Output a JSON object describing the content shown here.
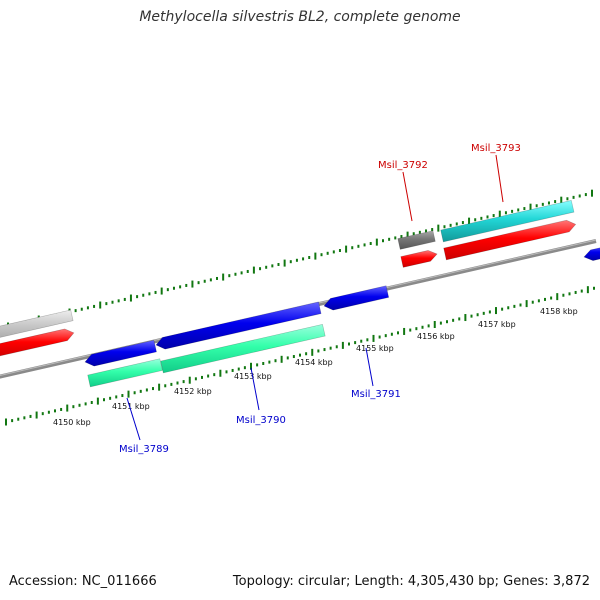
{
  "title": "Methylocella silvestris BL2, complete genome",
  "footer": {
    "accession": "Accession: NC_011666",
    "summary": "Topology: circular; Length: 4,305,430 bp; Genes: 3,872"
  },
  "axis": {
    "tick_labels": [
      "4150 kbp",
      "4151 kbp",
      "4152 kbp",
      "4153 kbp",
      "4154 kbp",
      "4155 kbp",
      "4156 kbp",
      "4157 kbp",
      "4158 kbp"
    ]
  },
  "genes": {
    "msil_3789": "Msil_3789",
    "msil_3790": "Msil_3790",
    "msil_3791": "Msil_3791",
    "msil_3792": "Msil_3792",
    "msil_3793": "Msil_3793"
  },
  "colors": {
    "forward_strand": "#ff0000",
    "reverse_strand": "#0000ee",
    "rna": "#33ffaa",
    "cyan_feature": "#22d6d6",
    "grey_feature": "#777777",
    "backbone": "#888888",
    "tick": "#117711"
  }
}
